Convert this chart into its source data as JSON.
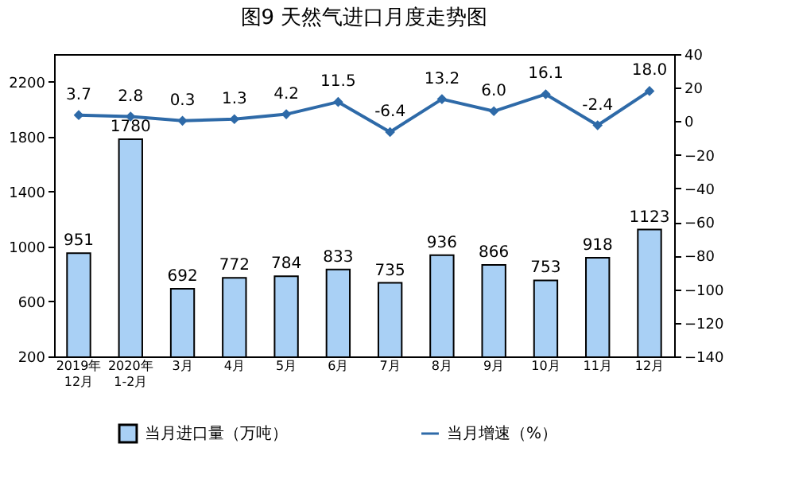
{
  "chart_data": {
    "type": "bar",
    "title": "图9  天然气进口月度走势图",
    "categories": [
      "2019年\n12月",
      "2020年\n1-2月",
      "3月",
      "4月",
      "5月",
      "6月",
      "7月",
      "8月",
      "9月",
      "10月",
      "11月",
      "12月"
    ],
    "series": [
      {
        "name": "当月进口量（万吨）",
        "color": "#a9d0f5",
        "values": [
          951,
          1780,
          692,
          772,
          784,
          833,
          735,
          936,
          866,
          753,
          918,
          1123
        ],
        "value_labels": [
          "951",
          "1780",
          "692",
          "772",
          "784",
          "833",
          "735",
          "936",
          "866",
          "753",
          "918",
          "1123"
        ]
      },
      {
        "name": "当月增速（%）",
        "type": "line",
        "axis": "y2",
        "color": "#2e6aa8",
        "marker": "diamond",
        "values": [
          3.7,
          2.8,
          0.3,
          1.3,
          4.2,
          11.5,
          -6.4,
          13.2,
          6.0,
          16.1,
          -2.4,
          18.0
        ],
        "value_labels": [
          "3.7",
          "2.8",
          "0.3",
          "1.3",
          "4.2",
          "11.5",
          "-6.4",
          "13.2",
          "6.0",
          "16.1",
          "-2.4",
          "18.0"
        ]
      }
    ],
    "ylim": [
      200,
      2400
    ],
    "yticks": [
      200,
      600,
      1000,
      1400,
      1800,
      2200
    ],
    "y2lim": [
      -140,
      40
    ],
    "y2ticks": [
      -140,
      -120,
      -100,
      -80,
      -60,
      -40,
      -20,
      0,
      20,
      40
    ],
    "grid": false,
    "legend": "bottom"
  }
}
